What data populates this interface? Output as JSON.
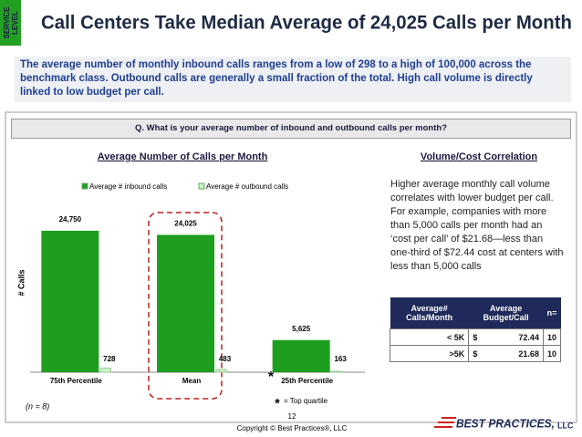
{
  "header": {
    "badge": [
      "SERVICE",
      "LEVEL"
    ],
    "title": "Call Centers Take Median Average of 24,025 Calls per Month"
  },
  "summary": "The average number of  monthly inbound calls ranges from a low of 298 to a high of 100,000 across the benchmark class.  Outbound calls are generally a small fraction of the total. High call volume is directly linked to low budget per call.",
  "question": "Q. What is your average number of  inbound and outbound calls per month?",
  "chart_data": {
    "type": "bar",
    "title": "Average Number of Calls per Month",
    "y_label": "# Calls",
    "categories": [
      "75th Percentile",
      "Mean",
      "25th Percentile"
    ],
    "series": [
      {
        "name": "Average # inbound calls",
        "color": "#1e9e1e",
        "values": [
          24750,
          24025,
          5625
        ],
        "value_labels": [
          "24,750",
          "24,025",
          "5,625"
        ]
      },
      {
        "name": "Average # outbound calls",
        "color": "#c8f5c8",
        "values": [
          728,
          483,
          163
        ]
      }
    ],
    "ylim": [
      0,
      30000
    ],
    "legend": "top",
    "annotations": {
      "sample": "(n = 8)",
      "star": "*",
      "star_note": "= Top quartile"
    }
  },
  "correlation": {
    "title": "Volume/Cost Correlation",
    "text": "Higher average monthly call volume correlates with lower budget per call. For example, companies with more than 5,000 calls per month had an ‘cost per call’ of $21.68—less than one-third of $72.44 cost at centers with less than 5,000 calls",
    "table": {
      "headers": [
        "Average# Calls/Month",
        "Average Budget/Call",
        "n="
      ],
      "rows": [
        [
          "< 5K",
          "$",
          "72.44",
          "10"
        ],
        [
          ">5K",
          "$",
          "21.68",
          "10"
        ]
      ]
    }
  },
  "footer": {
    "page": "12",
    "copyright": "Copyright ©  Best Practices®, LLC",
    "logo": "BEST PRACTICES,",
    "logo_suffix": "LLC"
  }
}
